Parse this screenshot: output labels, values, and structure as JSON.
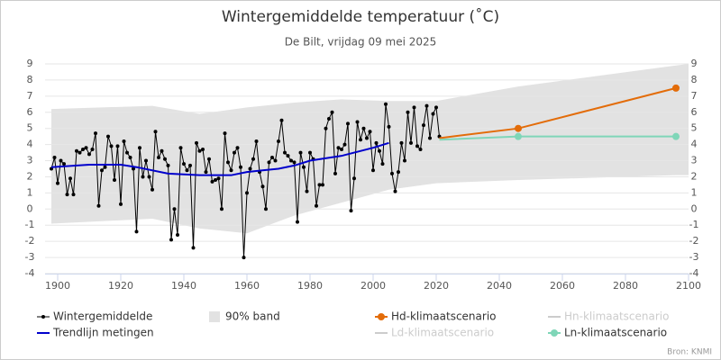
{
  "chart_data": {
    "type": "line",
    "title": "Wintergemiddelde temperatuur (˚C)",
    "subtitle": "De Bilt, vrijdag 09 mei 2025",
    "credit": "Bron: KNMI",
    "xlim": [
      1896,
      2100
    ],
    "xticks": [
      1900,
      1920,
      1940,
      1960,
      1980,
      2000,
      2020,
      2040,
      2060,
      2080,
      2100
    ],
    "ylim": [
      -4,
      9
    ],
    "yticks": [
      -4,
      -3,
      -2,
      -1,
      0,
      1,
      2,
      3,
      4,
      5,
      6,
      7,
      8,
      9
    ],
    "y2lim": [
      -4,
      9
    ],
    "y2ticks": [
      -4,
      -3,
      -2,
      -1,
      0,
      1,
      2,
      3,
      4,
      5,
      6,
      7,
      8,
      9
    ],
    "grid": true,
    "band": {
      "name": "90% band",
      "color": "#e2e2e2",
      "x": [
        1898,
        1930,
        1945,
        1960,
        1975,
        1990,
        2005,
        2020,
        2046,
        2096,
        2100
      ],
      "lower": [
        -0.9,
        -0.6,
        -1.2,
        -1.5,
        -0.4,
        0.4,
        1.2,
        1.6,
        1.8,
        2.1,
        2.1
      ],
      "upper": [
        6.2,
        6.4,
        5.9,
        6.3,
        6.6,
        6.8,
        6.7,
        6.7,
        7.6,
        8.9,
        9.0
      ]
    },
    "series": [
      {
        "name": "Wintergemiddelde",
        "color": "#000000",
        "visible": true,
        "width": 1,
        "marker": true,
        "x": [
          1898,
          1899,
          1900,
          1901,
          1902,
          1903,
          1904,
          1905,
          1906,
          1907,
          1908,
          1909,
          1910,
          1911,
          1912,
          1913,
          1914,
          1915,
          1916,
          1917,
          1918,
          1919,
          1920,
          1921,
          1922,
          1923,
          1924,
          1925,
          1926,
          1927,
          1928,
          1929,
          1930,
          1931,
          1932,
          1933,
          1934,
          1935,
          1936,
          1937,
          1938,
          1939,
          1940,
          1941,
          1942,
          1943,
          1944,
          1945,
          1946,
          1947,
          1948,
          1949,
          1950,
          1951,
          1952,
          1953,
          1954,
          1955,
          1956,
          1957,
          1958,
          1959,
          1960,
          1961,
          1962,
          1963,
          1964,
          1965,
          1966,
          1967,
          1968,
          1969,
          1970,
          1971,
          1972,
          1973,
          1974,
          1975,
          1976,
          1977,
          1978,
          1979,
          1980,
          1981,
          1982,
          1983,
          1984,
          1985,
          1986,
          1987,
          1988,
          1989,
          1990,
          1991,
          1992,
          1993,
          1994,
          1995,
          1996,
          1997,
          1998,
          1999,
          2000,
          2001,
          2002,
          2003,
          2004,
          2005,
          2006,
          2007,
          2008,
          2009,
          2010,
          2011,
          2012,
          2013,
          2014,
          2015,
          2016,
          2017,
          2018,
          2019,
          2020,
          2021
        ],
        "values": [
          2.5,
          3.2,
          1.6,
          3.0,
          2.8,
          0.9,
          1.9,
          0.9,
          3.6,
          3.5,
          3.7,
          3.8,
          3.4,
          3.7,
          4.7,
          0.2,
          2.4,
          2.6,
          4.5,
          3.9,
          1.8,
          3.9,
          0.3,
          4.2,
          3.5,
          3.2,
          2.5,
          -1.4,
          3.8,
          2.0,
          3.0,
          2.0,
          1.2,
          4.8,
          3.2,
          3.6,
          3.1,
          2.7,
          -1.9,
          0.0,
          -1.6,
          3.8,
          2.8,
          2.4,
          2.7,
          -2.4,
          4.1,
          3.6,
          3.7,
          2.3,
          3.1,
          1.7,
          1.8,
          1.9,
          0.0,
          4.7,
          2.9,
          2.4,
          3.5,
          3.8,
          2.6,
          -3.0,
          1.0,
          2.5,
          3.1,
          4.2,
          2.3,
          1.4,
          0.0,
          2.9,
          3.2,
          3.0,
          4.2,
          5.5,
          3.5,
          3.3,
          3.0,
          2.9,
          -0.8,
          3.5,
          2.6,
          1.1,
          3.5,
          3.1,
          0.2,
          1.5,
          1.5,
          5.0,
          5.6,
          6.0,
          2.2,
          3.8,
          3.7,
          4.0,
          5.3,
          -0.1,
          1.9,
          5.4,
          4.3,
          5.0,
          4.4,
          4.8,
          2.4,
          4.1,
          3.6,
          2.8,
          6.5,
          5.1,
          2.2,
          1.1,
          2.3,
          4.1,
          3.0,
          6.0,
          4.1,
          6.3,
          3.9,
          3.7,
          5.2,
          6.4,
          4.4,
          5.9,
          6.3,
          4.5
        ]
      },
      {
        "name": "Trendlijn metingen",
        "color": "#0000cc",
        "visible": true,
        "width": 2,
        "marker": false,
        "x": [
          1898,
          1910,
          1920,
          1925,
          1935,
          1945,
          1955,
          1960,
          1965,
          1970,
          1975,
          1980,
          1990,
          2000,
          2005
        ],
        "values": [
          2.6,
          2.75,
          2.75,
          2.6,
          2.2,
          2.1,
          2.1,
          2.3,
          2.4,
          2.5,
          2.7,
          3.0,
          3.3,
          3.8,
          4.1
        ]
      },
      {
        "name": "Hd-klimaatscenario",
        "color": "#e36c09",
        "visible": true,
        "width": 2,
        "marker": true,
        "x": [
          2021,
          2046,
          2096
        ],
        "values": [
          4.4,
          5.0,
          7.5
        ]
      },
      {
        "name": "Hn-klimaatscenario",
        "color": "#cccccc",
        "visible": false
      },
      {
        "name": "Ld-klimaatscenario",
        "color": "#cccccc",
        "visible": false
      },
      {
        "name": "Ln-klimaatscenario",
        "color": "#7fd6b8",
        "visible": true,
        "width": 2,
        "marker": true,
        "x": [
          2021,
          2046,
          2096
        ],
        "values": [
          4.3,
          4.5,
          4.5
        ]
      }
    ]
  }
}
